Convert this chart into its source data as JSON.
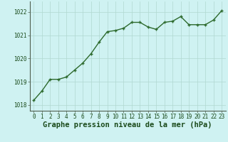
{
  "x": [
    0,
    1,
    2,
    3,
    4,
    5,
    6,
    7,
    8,
    9,
    10,
    11,
    12,
    13,
    14,
    15,
    16,
    17,
    18,
    19,
    20,
    21,
    22,
    23
  ],
  "y": [
    1018.2,
    1018.6,
    1019.1,
    1019.1,
    1019.2,
    1019.5,
    1019.8,
    1020.2,
    1020.7,
    1021.15,
    1021.2,
    1021.3,
    1021.55,
    1021.55,
    1021.35,
    1021.25,
    1021.55,
    1021.6,
    1021.8,
    1021.45,
    1021.45,
    1021.45,
    1021.65,
    1022.05
  ],
  "line_color": "#2d6a2d",
  "marker_color": "#2d6a2d",
  "bg_color": "#cff2f2",
  "grid_color": "#b0d8d0",
  "xlabel": "Graphe pression niveau de la mer (hPa)",
  "xlabel_color": "#1a4a1a",
  "ylim": [
    1017.75,
    1022.45
  ],
  "yticks": [
    1018,
    1019,
    1020,
    1021,
    1022
  ],
  "xticks": [
    0,
    1,
    2,
    3,
    4,
    5,
    6,
    7,
    8,
    9,
    10,
    11,
    12,
    13,
    14,
    15,
    16,
    17,
    18,
    19,
    20,
    21,
    22,
    23
  ],
  "tick_label_fontsize": 5.5,
  "xlabel_fontsize": 7.5,
  "line_width": 1.0,
  "marker_size": 2.5
}
